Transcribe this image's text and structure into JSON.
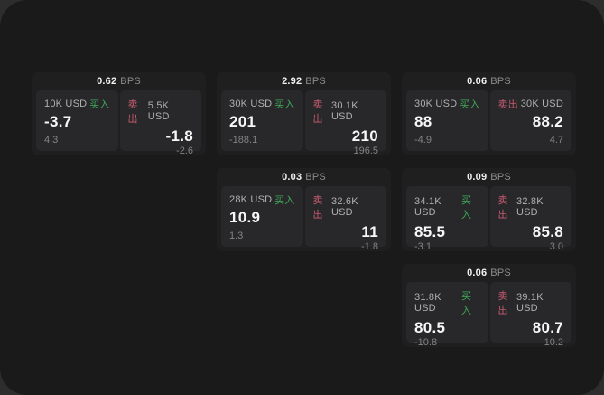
{
  "labels": {
    "bps": "BPS",
    "buy": "买入",
    "sell": "卖出"
  },
  "colors": {
    "outer_bg": "#2d2d2d",
    "window_bg": "#1a1a1b",
    "card_bg": "#1f1f20",
    "panel_bg": "#28282a",
    "buy_green": "#3fab58",
    "sell_red": "#c65a70",
    "value_white": "#f7f7f7",
    "muted_gray": "#838383"
  },
  "cards": [
    {
      "bps": "0.62",
      "buy": {
        "size": "10K USD",
        "value": "-3.7",
        "sub": "4.3"
      },
      "sell": {
        "size": "5.5K USD",
        "value": "-1.8",
        "sub": "-2.6"
      }
    },
    {
      "bps": "2.92",
      "buy": {
        "size": "30K USD",
        "value": "201",
        "sub": "-188.1"
      },
      "sell": {
        "size": "30.1K USD",
        "value": "210",
        "sub": "196.5"
      }
    },
    {
      "bps": "0.06",
      "buy": {
        "size": "30K USD",
        "value": "88",
        "sub": "-4.9"
      },
      "sell": {
        "size": "30K USD",
        "value": "88.2",
        "sub": "4.7"
      }
    },
    {
      "bps": "0.03",
      "buy": {
        "size": "28K USD",
        "value": "10.9",
        "sub": "1.3"
      },
      "sell": {
        "size": "32.6K USD",
        "value": "11",
        "sub": "-1.8"
      }
    },
    {
      "bps": "0.09",
      "buy": {
        "size": "34.1K USD",
        "value": "85.5",
        "sub": "-3.1"
      },
      "sell": {
        "size": "32.8K USD",
        "value": "85.8",
        "sub": "3.0"
      }
    },
    {
      "bps": "0.06",
      "buy": {
        "size": "31.8K USD",
        "value": "80.5",
        "sub": "-10.8"
      },
      "sell": {
        "size": "39.1K USD",
        "value": "80.7",
        "sub": "10.2"
      }
    }
  ]
}
